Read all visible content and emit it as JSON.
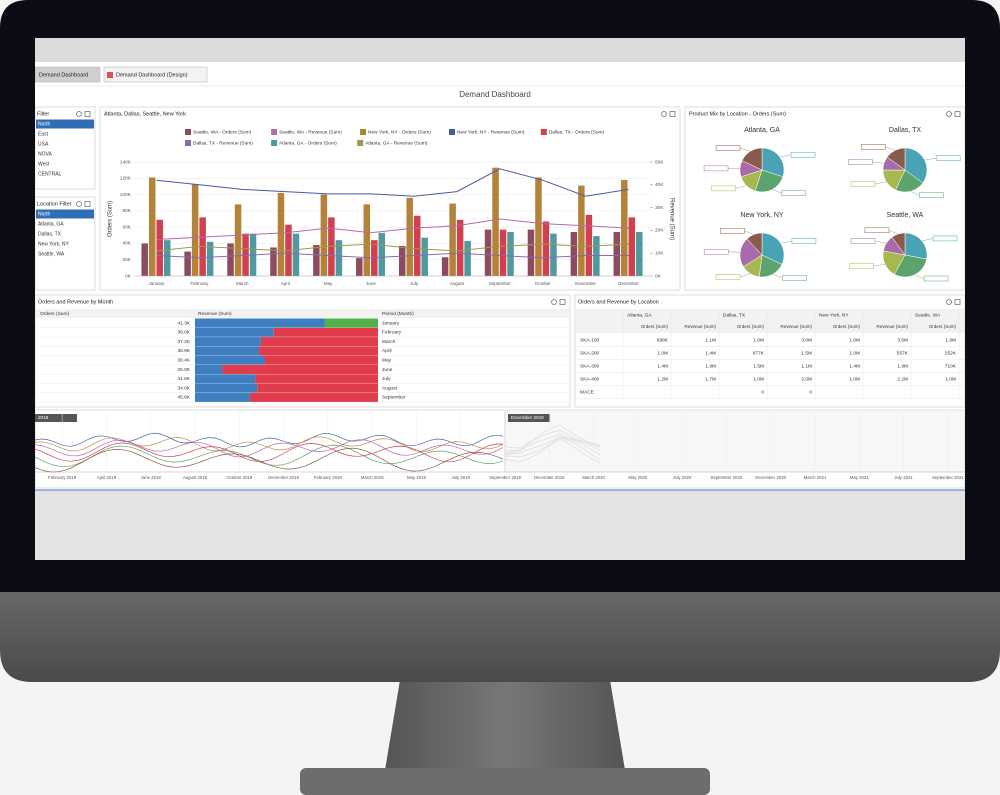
{
  "tabs": [
    "Demand Dashboard",
    "Demand Dashboard (Design)"
  ],
  "title": "Demand Dashboard",
  "filters": [
    {
      "title": "Filter",
      "items": [
        "North",
        "East",
        "USA",
        "NOVA",
        "West",
        "CENTRAL"
      ]
    },
    {
      "title": "Location Filter",
      "items": [
        "North",
        "Atlanta, GA",
        "Dallas, TX",
        "New York, NY",
        "Seattle, WA"
      ]
    }
  ],
  "bar_chart": {
    "type": "bar",
    "title": "Atlanta, Dallas, Seattle, New York",
    "y_label": "Orders (Sum)",
    "y2_label": "Revenue (Sum)",
    "categories": [
      "January",
      "February",
      "March",
      "April",
      "May",
      "June",
      "July",
      "August",
      "September",
      "October",
      "November",
      "December"
    ],
    "ylim": [
      0,
      140
    ],
    "yticks": [
      {
        "value": 0,
        "label": "0K"
      },
      {
        "value": 20,
        "label": "20K"
      },
      {
        "value": 40,
        "label": "40K"
      },
      {
        "value": 60,
        "label": "60K"
      },
      {
        "value": 80,
        "label": "80K"
      },
      {
        "value": 100,
        "label": "100K"
      },
      {
        "value": 120,
        "label": "120K"
      },
      {
        "value": 140,
        "label": "140K"
      }
    ],
    "y2lim": [
      0,
      50
    ],
    "y2ticks": [
      {
        "value": 0,
        "label": "0K"
      },
      {
        "value": 10,
        "label": "10K"
      },
      {
        "value": 20,
        "label": "20K"
      },
      {
        "value": 30,
        "label": "30K"
      },
      {
        "value": 40,
        "label": "40K"
      },
      {
        "value": 50,
        "label": "50K"
      }
    ],
    "series": [
      {
        "name": "Seattle, WA - Orders (Sum)",
        "color": "#8e4a5e",
        "kind": "bar",
        "values": [
          40,
          30,
          40,
          35,
          38,
          22,
          37,
          23,
          57,
          57,
          54,
          54
        ]
      },
      {
        "name": "Seattle, WA - Revenue (Sum)",
        "color": "#b569b0",
        "kind": "line",
        "axis": "y2",
        "values": [
          16,
          17,
          18,
          19,
          21,
          19,
          21,
          22,
          25,
          23,
          22,
          21
        ]
      },
      {
        "name": "New York, NY - Orders (Sum)",
        "color": "#b5823a",
        "kind": "bar",
        "values": [
          121,
          113,
          88,
          102,
          100,
          88,
          96,
          89,
          133,
          121,
          111,
          118
        ]
      },
      {
        "name": "New York, NY - Revenue (Sum)",
        "color": "#4a5aa8",
        "kind": "line",
        "axis": "y2",
        "values": [
          42,
          40,
          38,
          37,
          36,
          36,
          35,
          37,
          47,
          42,
          35,
          38
        ]
      },
      {
        "name": "Dallas, TX - Orders (Sum)",
        "color": "#d0404f",
        "kind": "bar",
        "values": [
          69,
          72,
          52,
          63,
          72,
          44,
          74,
          69,
          57,
          67,
          75,
          72
        ]
      },
      {
        "name": "Dallas, TX - Revenue (Sum)",
        "color": "#8a6aa8",
        "kind": "line",
        "axis": "y2",
        "values": [
          9,
          8,
          9,
          10,
          9,
          8,
          9,
          10,
          9,
          8,
          9,
          9
        ]
      },
      {
        "name": "Atlanta, GA - Orders (Sum)",
        "color": "#4f9aa0",
        "kind": "bar",
        "values": [
          44,
          42,
          52,
          52,
          44,
          53,
          47,
          43,
          54,
          52,
          49,
          54
        ]
      },
      {
        "name": "Atlanta, GA - Revenue (Sum)",
        "color": "#9a9a50",
        "kind": "line",
        "axis": "y2",
        "values": [
          11,
          13,
          12,
          11,
          13,
          14,
          12,
          11,
          13,
          14,
          13,
          14
        ]
      }
    ]
  },
  "pie_chart": {
    "type": "pie",
    "title": "Product Mix by Location - Orders (Sum)",
    "colors": [
      "#4aa3b5",
      "#5da36e",
      "#a8b850",
      "#a86aa8",
      "#8a5a4a"
    ],
    "pies": [
      {
        "name": "Atlanta, GA",
        "values": [
          30,
          25,
          15,
          12,
          18
        ]
      },
      {
        "name": "Dallas, TX",
        "values": [
          35,
          22,
          18,
          10,
          15
        ]
      },
      {
        "name": "New York, NY",
        "values": [
          32,
          20,
          14,
          22,
          12
        ]
      },
      {
        "name": "Seattle, WA",
        "values": [
          28,
          30,
          20,
          12,
          10
        ]
      }
    ]
  },
  "month_table": {
    "title": "Orders and Revenue by Month",
    "headers": [
      "Orders (Sum)",
      "Revenue (Sum)",
      "Period (Month)"
    ],
    "colors": [
      "#3f7fc1",
      "#e03c4c",
      "#55b04a"
    ],
    "rows": [
      {
        "orders": "41.3K",
        "revenue": [
          71,
          29
        ],
        "colors": [
          0,
          2
        ],
        "period": "January"
      },
      {
        "orders": "38.0K",
        "revenue": [
          43,
          57
        ],
        "colors": [
          0,
          1
        ],
        "period": "February"
      },
      {
        "orders": "37.2K",
        "revenue": [
          36,
          64
        ],
        "colors": [
          0,
          1
        ],
        "period": "March"
      },
      {
        "orders": "38.9K",
        "revenue": [
          35,
          65
        ],
        "colors": [
          0,
          1
        ],
        "period": "April"
      },
      {
        "orders": "38.4K",
        "revenue": [
          38,
          62
        ],
        "colors": [
          0,
          1
        ],
        "period": "May"
      },
      {
        "orders": "25.0K",
        "revenue": [
          15,
          85
        ],
        "colors": [
          0,
          1
        ],
        "period": "June"
      },
      {
        "orders": "41.6K",
        "revenue": [
          33,
          67
        ],
        "colors": [
          0,
          1
        ],
        "period": "July"
      },
      {
        "orders": "34.0K",
        "revenue": [
          34,
          66
        ],
        "colors": [
          0,
          1
        ],
        "period": "August"
      },
      {
        "orders": "45.6K",
        "revenue": [
          30,
          70
        ],
        "colors": [
          0,
          1
        ],
        "period": "September"
      }
    ]
  },
  "location_table": {
    "title": "Orders and Revenue by Location",
    "locations": [
      "Atlanta, GA",
      "Dallas, TX",
      "New York, NY",
      "Seattle, WA"
    ],
    "measures": [
      "Orders (Sum)",
      "Revenue (Sum)"
    ],
    "rows": [
      {
        "label": "SKA-100",
        "cells": [
          "698K",
          "1.1M",
          "1.0M",
          "3.0M",
          "1.0M",
          "3.5M",
          "1.9M"
        ]
      },
      {
        "label": "SKA-200",
        "cells": [
          "1.0M",
          "1.4M",
          "877K",
          "1.5M",
          "1.0M",
          "557K",
          "252K"
        ]
      },
      {
        "label": "SKA-300",
        "cells": [
          "1.4M",
          "1.9M",
          "1.5M",
          "1.1M",
          "1.4M",
          "1.9M",
          "710K"
        ]
      },
      {
        "label": "SKA-400",
        "cells": [
          "1.2M",
          "1.7M",
          "1.0M",
          "2.0M",
          "1.0M",
          "2.2M",
          "1.0M"
        ]
      },
      {
        "label": "MACE",
        "cells": [
          "",
          "",
          "0",
          "0",
          "",
          "",
          ""
        ]
      }
    ]
  },
  "timeline": {
    "tags": [
      "2018",
      "December 2019"
    ],
    "ticks": [
      "February 2018",
      "April 2018",
      "June 2018",
      "August 2018",
      "October 2018",
      "December 2018",
      "February 2019",
      "March 2019",
      "May 2019",
      "July 2019",
      "September 2019",
      "December 2019",
      "March 2020",
      "May 2020",
      "July 2020",
      "September 2020",
      "December 2020",
      "March 2021",
      "May 2021",
      "July 2021",
      "September 2021"
    ]
  }
}
